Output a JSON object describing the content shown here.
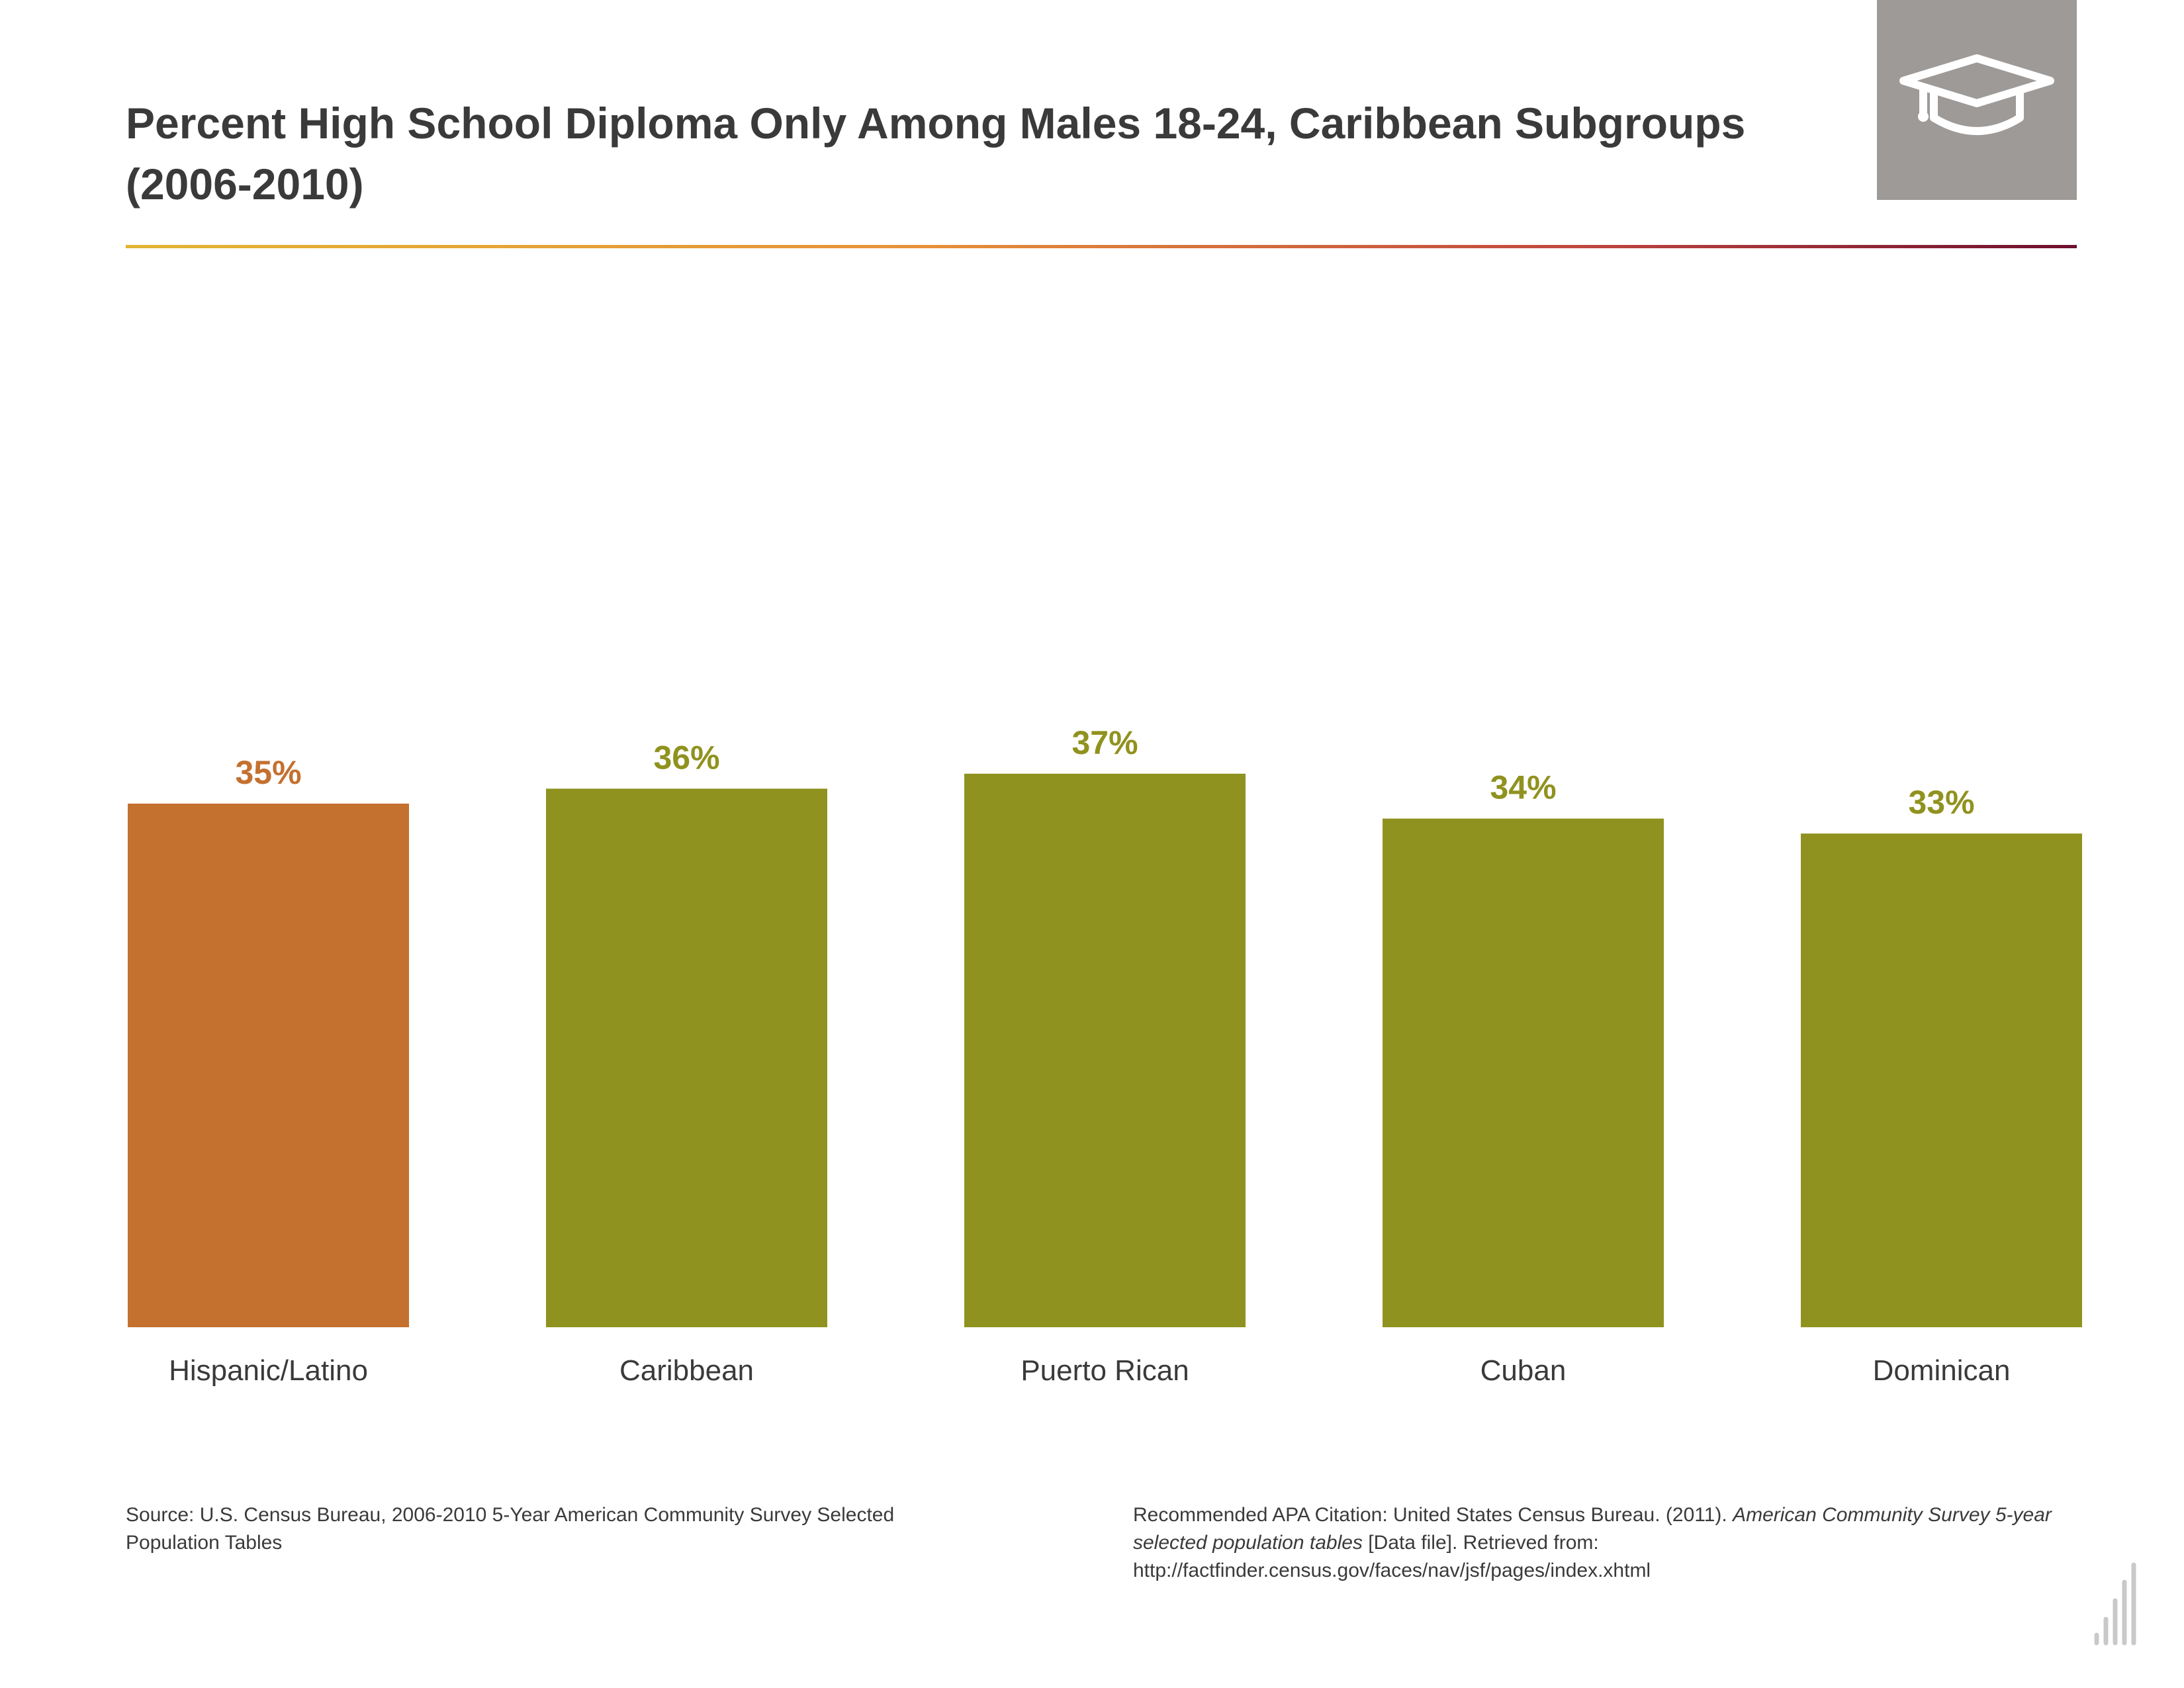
{
  "page": {
    "title": "Percent High School Diploma Only Among Males 18-24, Caribbean Subgroups (2006-2010)",
    "icon": "graduation-cap-icon",
    "source": "Source: U.S. Census Bureau, 2006-2010 5-Year American Community Survey Selected Population Tables",
    "citation": {
      "prefix": "Recommended APA Citation: United States Census Bureau. (2011). ",
      "italic": "American Community Survey 5-year selected population tables",
      "suffix": " [Data file]. Retrieved from: http://factfinder.census.gov/faces/nav/jsf/pages/index.xhtml"
    }
  },
  "colors": {
    "highlight": "#c4702f",
    "bar": "#90921f",
    "title": "#3a3a3a",
    "icon_bg": "#9d9a98"
  },
  "chart_data": {
    "type": "bar",
    "title": "Percent High School Diploma Only Among Males 18-24, Caribbean Subgroups (2006-2010)",
    "categories": [
      "Hispanic/Latino",
      "Caribbean",
      "Puerto Rican",
      "Cuban",
      "Dominican"
    ],
    "values": [
      35,
      36,
      37,
      34,
      33
    ],
    "value_labels": [
      "35%",
      "36%",
      "37%",
      "34%",
      "33%"
    ],
    "unit": "%",
    "highlight_index": 0,
    "ylim": [
      0,
      100
    ],
    "grid": false,
    "legend": "none"
  }
}
